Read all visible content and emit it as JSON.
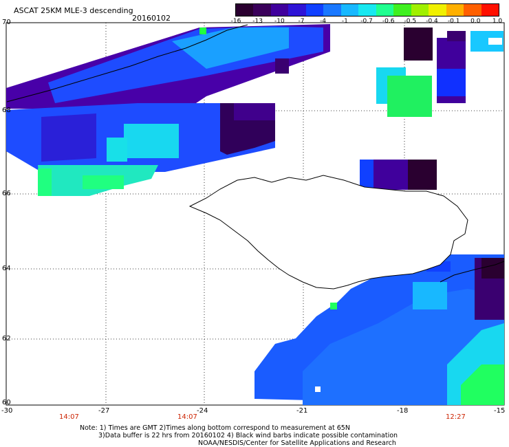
{
  "header": {
    "title": "ASCAT 25KM MLE-3 descending",
    "date": "20160102"
  },
  "colorbar": {
    "labels": [
      "-16",
      "-13",
      "-10",
      "-7",
      "-4",
      "-1",
      "-0.7",
      "-0.6",
      "-0.5",
      "-0.4",
      "-0.1",
      "0.0",
      "1.0"
    ],
    "colors": [
      "#2a0030",
      "#3a005a",
      "#40009c",
      "#2e14d6",
      "#1040ff",
      "#1a78ff",
      "#18b8ff",
      "#18e8f0",
      "#20ff90",
      "#40f020",
      "#a0f000",
      "#f0f000",
      "#ffb000",
      "#ff6000",
      "#ff1000"
    ]
  },
  "map": {
    "lat_labels": [
      "70",
      "68",
      "66",
      "64",
      "62",
      "60"
    ],
    "lon_labels": [
      "-30",
      "-27",
      "-24",
      "-21",
      "-18",
      "-15"
    ],
    "times": [
      "14:07",
      "14:07",
      "12:27"
    ]
  },
  "footer": {
    "line1": "Note: 1) Times are GMT 2)Times along bottom correspond to measurement at 65N",
    "line2": "3)Data buffer is 22 hrs from 20160102 4) Black wind barbs indicate possible contamination",
    "line3": "NOAA/NESDIS/Center for Satellite Applications and Research"
  }
}
